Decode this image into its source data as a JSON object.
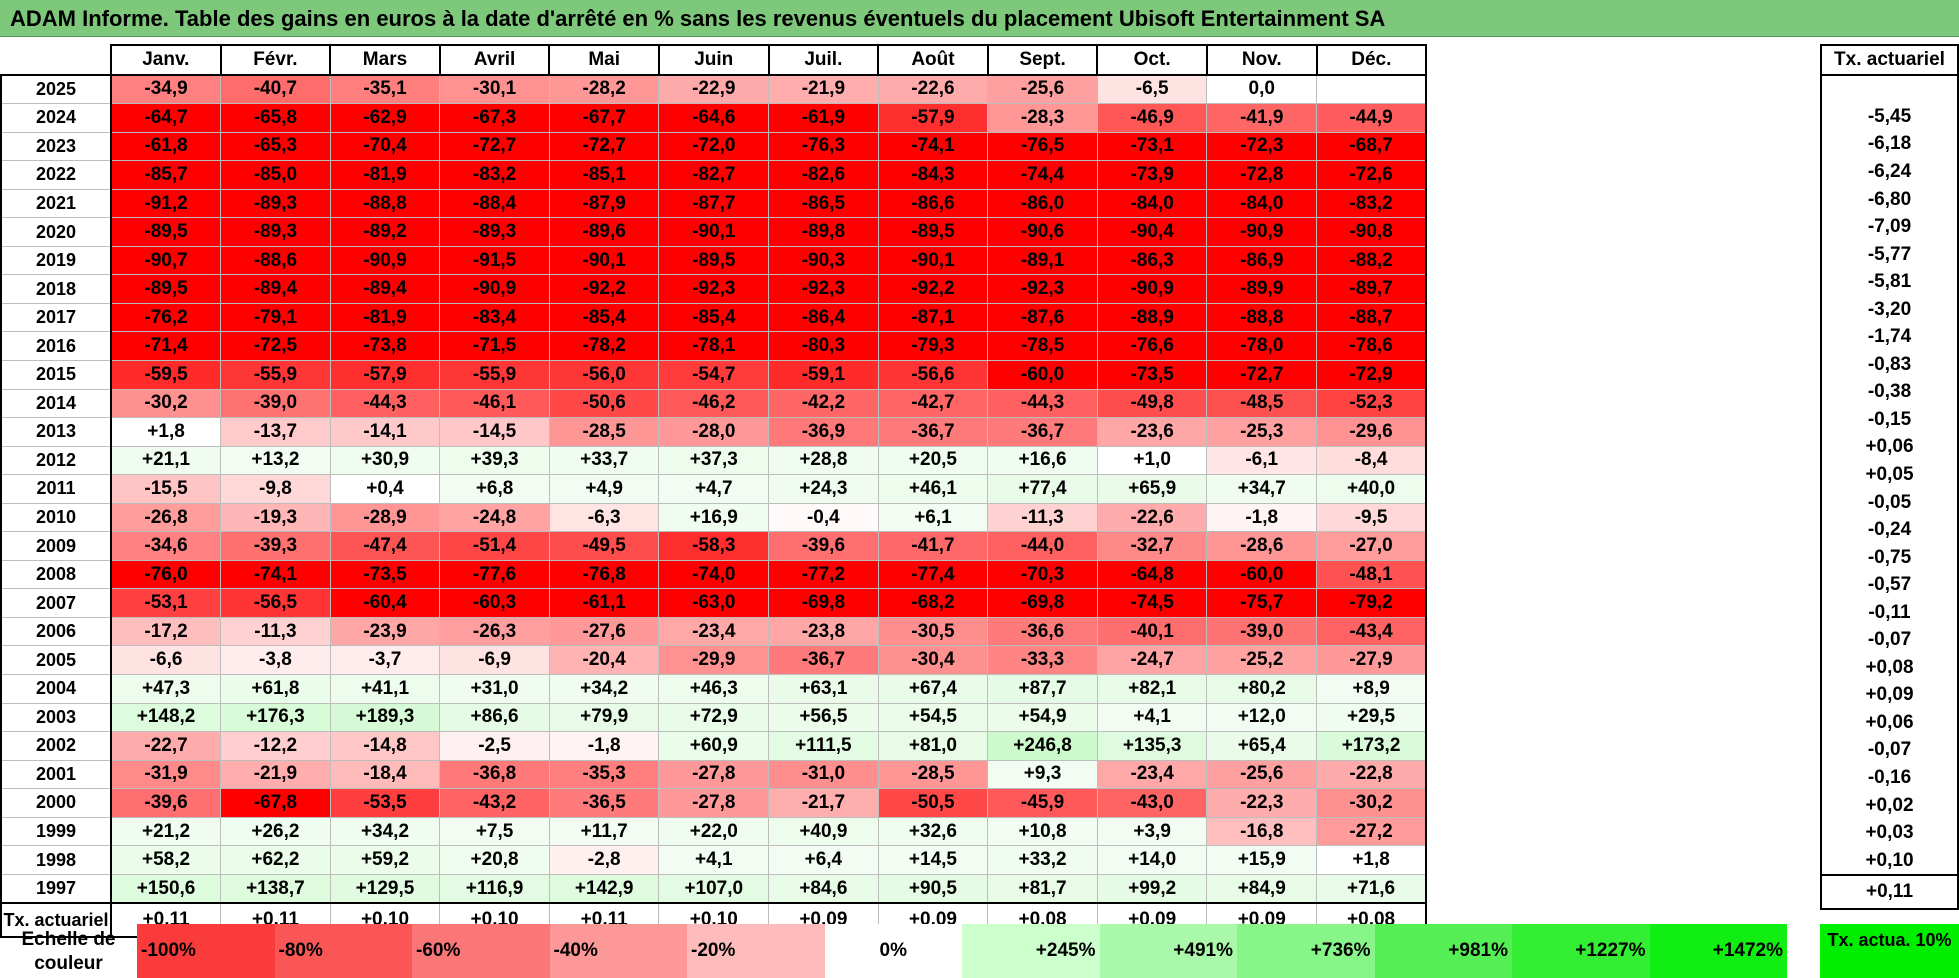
{
  "title": "ADAM Informe. Table des gains en euros à la date d'arrêté en % sans les revenus éventuels du placement Ubisoft Entertainment SA",
  "months": [
    "Janv.",
    "Févr.",
    "Mars",
    "Avril",
    "Mai",
    "Juin",
    "Juil.",
    "Août",
    "Sept.",
    "Oct.",
    "Nov.",
    "Déc."
  ],
  "actuarial_header": "Tx. actuariel",
  "rows": [
    {
      "year": "2025",
      "values": [
        "-34,9",
        "-40,7",
        "-35,1",
        "-30,1",
        "-28,2",
        "-22,9",
        "-21,9",
        "-22,6",
        "-25,6",
        "-6,5",
        "0,0",
        ""
      ],
      "rate": ""
    },
    {
      "year": "2024",
      "values": [
        "-64,7",
        "-65,8",
        "-62,9",
        "-67,3",
        "-67,7",
        "-64,6",
        "-61,9",
        "-57,9",
        "-28,3",
        "-46,9",
        "-41,9",
        "-44,9"
      ],
      "rate": "-5,45"
    },
    {
      "year": "2023",
      "values": [
        "-61,8",
        "-65,3",
        "-70,4",
        "-72,7",
        "-72,7",
        "-72,0",
        "-76,3",
        "-74,1",
        "-76,5",
        "-73,1",
        "-72,3",
        "-68,7"
      ],
      "rate": "-6,18"
    },
    {
      "year": "2022",
      "values": [
        "-85,7",
        "-85,0",
        "-81,9",
        "-83,2",
        "-85,1",
        "-82,7",
        "-82,6",
        "-84,3",
        "-74,4",
        "-73,9",
        "-72,8",
        "-72,6"
      ],
      "rate": "-6,24"
    },
    {
      "year": "2021",
      "values": [
        "-91,2",
        "-89,3",
        "-88,8",
        "-88,4",
        "-87,9",
        "-87,7",
        "-86,5",
        "-86,6",
        "-86,0",
        "-84,0",
        "-84,0",
        "-83,2"
      ],
      "rate": "-6,80"
    },
    {
      "year": "2020",
      "values": [
        "-89,5",
        "-89,3",
        "-89,2",
        "-89,3",
        "-89,6",
        "-90,1",
        "-89,8",
        "-89,5",
        "-90,6",
        "-90,4",
        "-90,9",
        "-90,8"
      ],
      "rate": "-7,09"
    },
    {
      "year": "2019",
      "values": [
        "-90,7",
        "-88,6",
        "-90,9",
        "-91,5",
        "-90,1",
        "-89,5",
        "-90,3",
        "-90,1",
        "-89,1",
        "-86,3",
        "-86,9",
        "-88,2"
      ],
      "rate": "-5,77"
    },
    {
      "year": "2018",
      "values": [
        "-89,5",
        "-89,4",
        "-89,4",
        "-90,9",
        "-92,2",
        "-92,3",
        "-92,3",
        "-92,2",
        "-92,3",
        "-90,9",
        "-89,9",
        "-89,7"
      ],
      "rate": "-5,81"
    },
    {
      "year": "2017",
      "values": [
        "-76,2",
        "-79,1",
        "-81,9",
        "-83,4",
        "-85,4",
        "-85,4",
        "-86,4",
        "-87,1",
        "-87,6",
        "-88,9",
        "-88,8",
        "-88,7"
      ],
      "rate": "-3,20"
    },
    {
      "year": "2016",
      "values": [
        "-71,4",
        "-72,5",
        "-73,8",
        "-71,5",
        "-78,2",
        "-78,1",
        "-80,3",
        "-79,3",
        "-78,5",
        "-76,6",
        "-78,0",
        "-78,6"
      ],
      "rate": "-1,74"
    },
    {
      "year": "2015",
      "values": [
        "-59,5",
        "-55,9",
        "-57,9",
        "-55,9",
        "-56,0",
        "-54,7",
        "-59,1",
        "-56,6",
        "-60,0",
        "-73,5",
        "-72,7",
        "-72,9"
      ],
      "rate": "-0,83"
    },
    {
      "year": "2014",
      "values": [
        "-30,2",
        "-39,0",
        "-44,3",
        "-46,1",
        "-50,6",
        "-46,2",
        "-42,2",
        "-42,7",
        "-44,3",
        "-49,8",
        "-48,5",
        "-52,3"
      ],
      "rate": "-0,38"
    },
    {
      "year": "2013",
      "values": [
        "+1,8",
        "-13,7",
        "-14,1",
        "-14,5",
        "-28,5",
        "-28,0",
        "-36,9",
        "-36,7",
        "-36,7",
        "-23,6",
        "-25,3",
        "-29,6"
      ],
      "rate": "-0,15"
    },
    {
      "year": "2012",
      "values": [
        "+21,1",
        "+13,2",
        "+30,9",
        "+39,3",
        "+33,7",
        "+37,3",
        "+28,8",
        "+20,5",
        "+16,6",
        "+1,0",
        "-6,1",
        "-8,4"
      ],
      "rate": "+0,06"
    },
    {
      "year": "2011",
      "values": [
        "-15,5",
        "-9,8",
        "+0,4",
        "+6,8",
        "+4,9",
        "+4,7",
        "+24,3",
        "+46,1",
        "+77,4",
        "+65,9",
        "+34,7",
        "+40,0"
      ],
      "rate": "+0,05"
    },
    {
      "year": "2010",
      "values": [
        "-26,8",
        "-19,3",
        "-28,9",
        "-24,8",
        "-6,3",
        "+16,9",
        "-0,4",
        "+6,1",
        "-11,3",
        "-22,6",
        "-1,8",
        "-9,5"
      ],
      "rate": "-0,05"
    },
    {
      "year": "2009",
      "values": [
        "-34,6",
        "-39,3",
        "-47,4",
        "-51,4",
        "-49,5",
        "-58,3",
        "-39,6",
        "-41,7",
        "-44,0",
        "-32,7",
        "-28,6",
        "-27,0"
      ],
      "rate": "-0,24"
    },
    {
      "year": "2008",
      "values": [
        "-76,0",
        "-74,1",
        "-73,5",
        "-77,6",
        "-76,8",
        "-74,0",
        "-77,2",
        "-77,4",
        "-70,3",
        "-64,8",
        "-60,0",
        "-48,1"
      ],
      "rate": "-0,75"
    },
    {
      "year": "2007",
      "values": [
        "-53,1",
        "-56,5",
        "-60,4",
        "-60,3",
        "-61,1",
        "-63,0",
        "-69,8",
        "-68,2",
        "-69,8",
        "-74,5",
        "-75,7",
        "-79,2"
      ],
      "rate": "-0,57"
    },
    {
      "year": "2006",
      "values": [
        "-17,2",
        "-11,3",
        "-23,9",
        "-26,3",
        "-27,6",
        "-23,4",
        "-23,8",
        "-30,5",
        "-36,6",
        "-40,1",
        "-39,0",
        "-43,4"
      ],
      "rate": "-0,11"
    },
    {
      "year": "2005",
      "values": [
        "-6,6",
        "-3,8",
        "-3,7",
        "-6,9",
        "-20,4",
        "-29,9",
        "-36,7",
        "-30,4",
        "-33,3",
        "-24,7",
        "-25,2",
        "-27,9"
      ],
      "rate": "-0,07"
    },
    {
      "year": "2004",
      "values": [
        "+47,3",
        "+61,8",
        "+41,1",
        "+31,0",
        "+34,2",
        "+46,3",
        "+63,1",
        "+67,4",
        "+87,7",
        "+82,1",
        "+80,2",
        "+8,9"
      ],
      "rate": "+0,08"
    },
    {
      "year": "2003",
      "values": [
        "+148,2",
        "+176,3",
        "+189,3",
        "+86,6",
        "+79,9",
        "+72,9",
        "+56,5",
        "+54,5",
        "+54,9",
        "+4,1",
        "+12,0",
        "+29,5"
      ],
      "rate": "+0,09"
    },
    {
      "year": "2002",
      "values": [
        "-22,7",
        "-12,2",
        "-14,8",
        "-2,5",
        "-1,8",
        "+60,9",
        "+111,5",
        "+81,0",
        "+246,8",
        "+135,3",
        "+65,4",
        "+173,2"
      ],
      "rate": "+0,06"
    },
    {
      "year": "2001",
      "values": [
        "-31,9",
        "-21,9",
        "-18,4",
        "-36,8",
        "-35,3",
        "-27,8",
        "-31,0",
        "-28,5",
        "+9,3",
        "-23,4",
        "-25,6",
        "-22,8"
      ],
      "rate": "-0,07"
    },
    {
      "year": "2000",
      "values": [
        "-39,6",
        "-67,8",
        "-53,5",
        "-43,2",
        "-36,5",
        "-27,8",
        "-21,7",
        "-50,5",
        "-45,9",
        "-43,0",
        "-22,3",
        "-30,2"
      ],
      "rate": "-0,16"
    },
    {
      "year": "1999",
      "values": [
        "+21,2",
        "+26,2",
        "+34,2",
        "+7,5",
        "+11,7",
        "+22,0",
        "+40,9",
        "+32,6",
        "+10,8",
        "+3,9",
        "-16,8",
        "-27,2"
      ],
      "rate": "+0,02"
    },
    {
      "year": "1998",
      "values": [
        "+58,2",
        "+62,2",
        "+59,2",
        "+20,8",
        "-2,8",
        "+4,1",
        "+6,4",
        "+14,5",
        "+33,2",
        "+14,0",
        "+15,9",
        "+1,8"
      ],
      "rate": "+0,03"
    },
    {
      "year": "1997",
      "values": [
        "+150,6",
        "+138,7",
        "+129,5",
        "+116,9",
        "+142,9",
        "+107,0",
        "+84,6",
        "+90,5",
        "+81,7",
        "+99,2",
        "+84,9",
        "+71,6"
      ],
      "rate": "+0,10"
    }
  ],
  "footer": {
    "label": "Tx. actuariel",
    "values": [
      "+0,11",
      "+0,11",
      "+0,10",
      "+0,10",
      "+0,11",
      "+0,10",
      "+0,09",
      "+0,09",
      "+0,08",
      "+0,09",
      "+0,09",
      "+0,08"
    ],
    "rate": "+0,11"
  },
  "scale": {
    "label": "Echelle de couleur",
    "items": [
      {
        "text": "-100%",
        "color": "#f93b3b",
        "align": "left"
      },
      {
        "text": "-80%",
        "color": "#fa5656",
        "align": "left"
      },
      {
        "text": "-60%",
        "color": "#fb7676",
        "align": "left"
      },
      {
        "text": "-40%",
        "color": "#fd9898",
        "align": "left"
      },
      {
        "text": "-20%",
        "color": "#febbbb",
        "align": "left"
      },
      {
        "text": "0%",
        "color": "#ffffff",
        "align": "center"
      },
      {
        "text": "+245%",
        "color": "#ccffcc",
        "align": "right"
      },
      {
        "text": "+491%",
        "color": "#aaf8aa",
        "align": "right"
      },
      {
        "text": "+736%",
        "color": "#88f588",
        "align": "right"
      },
      {
        "text": "+981%",
        "color": "#55ee55",
        "align": "right"
      },
      {
        "text": "+1227%",
        "color": "#33ee33",
        "align": "right"
      },
      {
        "text": "+1472%",
        "color": "#11ee11",
        "align": "right"
      }
    ],
    "actuarial_label": "Tx. actua. 10%"
  },
  "colors": {
    "neg_max": "#ff0000",
    "neutral": "#ffffff",
    "pos_light": "#e8fbe8"
  }
}
